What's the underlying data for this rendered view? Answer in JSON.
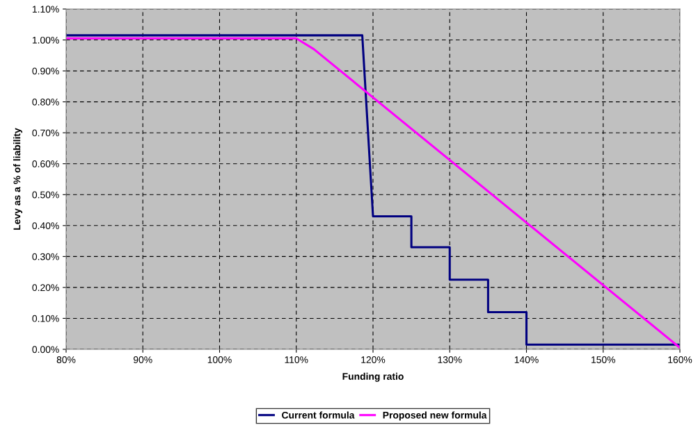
{
  "chart_data": {
    "type": "line",
    "xlabel": "Funding ratio",
    "ylabel": "Levy as a % of liability",
    "series": [
      {
        "name": "Current formula",
        "color": "#000080",
        "x": [
          80,
          118.6,
          120,
          125,
          125,
          130,
          130,
          135,
          135,
          140,
          140,
          160
        ],
        "values": [
          1.015,
          1.015,
          0.43,
          0.43,
          0.33,
          0.33,
          0.225,
          0.225,
          0.12,
          0.12,
          0.015,
          0.015
        ]
      },
      {
        "name": "Proposed new formula",
        "color": "#ff00ff",
        "x": [
          80,
          110,
          112.3,
          160
        ],
        "values": [
          1.005,
          1.005,
          0.97,
          0.005
        ]
      }
    ],
    "xlim": [
      80,
      160
    ],
    "xticks": [
      {
        "value": 80,
        "label": "80%"
      },
      {
        "value": 90,
        "label": "90%"
      },
      {
        "value": 100,
        "label": "100%"
      },
      {
        "value": 110,
        "label": "110%"
      },
      {
        "value": 120,
        "label": "120%"
      },
      {
        "value": 130,
        "label": "130%"
      },
      {
        "value": 140,
        "label": "140%"
      },
      {
        "value": 150,
        "label": "150%"
      },
      {
        "value": 160,
        "label": "160%"
      }
    ],
    "ylim": [
      0,
      1.1
    ],
    "yticks": [
      {
        "value": 0,
        "label": "0.00%"
      },
      {
        "value": 0.1,
        "label": "0.10%"
      },
      {
        "value": 0.2,
        "label": "0.20%"
      },
      {
        "value": 0.3,
        "label": "0.30%"
      },
      {
        "value": 0.4,
        "label": "0.40%"
      },
      {
        "value": 0.5,
        "label": "0.50%"
      },
      {
        "value": 0.6,
        "label": "0.60%"
      },
      {
        "value": 0.7,
        "label": "0.70%"
      },
      {
        "value": 0.8,
        "label": "0.80%"
      },
      {
        "value": 0.9,
        "label": "0.90%"
      },
      {
        "value": 1.0,
        "label": "1.00%"
      },
      {
        "value": 1.1,
        "label": "1.10%"
      }
    ],
    "grid": true,
    "legend": "bottom",
    "marker": "none",
    "line_style": "solid"
  }
}
